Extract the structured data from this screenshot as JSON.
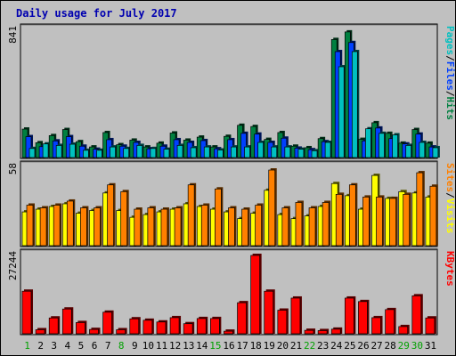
{
  "chart_data": {
    "type": "bar",
    "title": "Daily usage for July 2017",
    "days": [
      "1",
      "2",
      "3",
      "4",
      "5",
      "6",
      "7",
      "8",
      "9",
      "10",
      "11",
      "12",
      "13",
      "14",
      "15",
      "16",
      "17",
      "18",
      "19",
      "20",
      "21",
      "22",
      "23",
      "24",
      "25",
      "26",
      "27",
      "28",
      "29",
      "30",
      "31"
    ],
    "weekend_days": [
      "1",
      "8",
      "15",
      "22",
      "29",
      "30"
    ],
    "panels": [
      {
        "id": "hits_files_pages",
        "max_label": "841",
        "ymax": 841,
        "legend": [
          {
            "label": "Pages",
            "color": "#00c0c0"
          },
          {
            "sep": " / "
          },
          {
            "label": "Files",
            "color": "#0040ff"
          },
          {
            "sep": " / "
          },
          {
            "label": "Hits",
            "color": "#008040"
          }
        ],
        "series": [
          {
            "name": "Hits",
            "color": "#008040",
            "values": [
              188,
              98,
              145,
              185,
              105,
              70,
              165,
              85,
              115,
              70,
              95,
              162,
              115,
              135,
              70,
              140,
              213,
              205,
              120,
              165,
              75,
              65,
              125,
              780,
              830,
              120,
              230,
              160,
              95,
              185,
              95
            ]
          },
          {
            "name": "Files",
            "color": "#0040ff",
            "values": [
              138,
              72,
              110,
              138,
              75,
              55,
              118,
              75,
              100,
              58,
              75,
              118,
              100,
              112,
              58,
              118,
              160,
              155,
              100,
              128,
              62,
              52,
              105,
              700,
              760,
              110,
              195,
              125,
              90,
              155,
              70
            ]
          },
          {
            "name": "Pages",
            "color": "#00c0c0",
            "values": [
              60,
              90,
              80,
              88,
              48,
              48,
              70,
              60,
              80,
              60,
              55,
              80,
              65,
              70,
              50,
              70,
              70,
              100,
              70,
              70,
              55,
              45,
              100,
              600,
              700,
              190,
              160,
              150,
              80,
              100,
              65
            ]
          }
        ]
      },
      {
        "id": "visits_sites",
        "max_label": "58",
        "ymax": 58,
        "legend": [
          {
            "label": "Sites",
            "color": "#ff8000"
          },
          {
            "sep": " / "
          },
          {
            "label": "Visits",
            "color": "#ffff00"
          }
        ],
        "series": [
          {
            "name": "Visits",
            "color": "#ffff00",
            "values": [
              25,
              27,
              29,
              31,
              24,
              26,
              39,
              26,
              21,
              23,
              25,
              27,
              31,
              29,
              27,
              25,
              20,
              24,
              41,
              23,
              20,
              22,
              29,
              46,
              37,
              27,
              52,
              35,
              40,
              39,
              36
            ]
          },
          {
            "name": "Sites",
            "color": "#ff8000",
            "values": [
              30,
              28,
              30,
              33,
              28,
              28,
              45,
              40,
              27,
              28,
              27,
              28,
              45,
              30,
              42,
              28,
              27,
              30,
              56,
              28,
              32,
              28,
              32,
              38,
              45,
              36,
              36,
              35,
              38,
              54,
              44
            ]
          }
        ]
      },
      {
        "id": "kbytes",
        "max_label": "27244",
        "ymax": 27244,
        "legend": [
          {
            "label": "KBytes",
            "color": "#ff0000"
          }
        ],
        "series": [
          {
            "name": "KBytes",
            "color": "#ff0000",
            "values": [
              14800,
              1400,
              5500,
              8600,
              3900,
              1500,
              7500,
              1400,
              5200,
              4700,
              4100,
              5600,
              3500,
              5300,
              5300,
              900,
              10800,
              27244,
              14800,
              8200,
              12400,
              1200,
              1100,
              1600,
              12400,
              11200,
              5600,
              8400,
              2500,
              13200,
              5500
            ]
          }
        ]
      }
    ]
  }
}
